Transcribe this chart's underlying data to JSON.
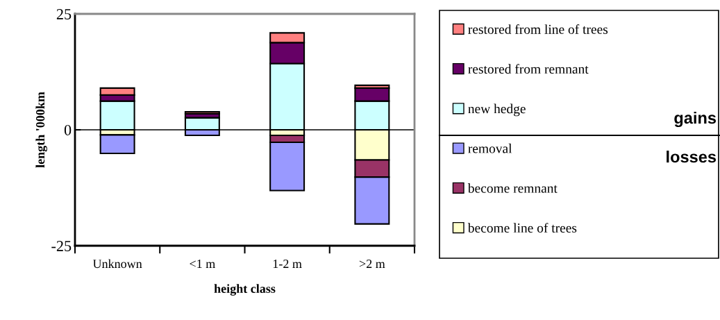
{
  "chart_data": {
    "type": "bar",
    "stacked": true,
    "xlabel": "height class",
    "ylabel": "length '000km",
    "categories": [
      "Unknown",
      "<1 m",
      "1-2 m",
      ">2 m"
    ],
    "series": [
      {
        "name": "new hedge",
        "color": "#ccffff",
        "values": [
          6.2,
          2.6,
          14.3,
          6.2
        ]
      },
      {
        "name": "restored from remnant",
        "color": "#660066",
        "values": [
          1.3,
          0.9,
          4.5,
          2.8
        ]
      },
      {
        "name": "restored from line of trees",
        "color": "#ff8080",
        "values": [
          1.5,
          0.4,
          2.1,
          0.6
        ]
      },
      {
        "name": "become line of trees",
        "color": "#ffffcc",
        "values": [
          -1.1,
          null,
          -1.2,
          -6.5
        ]
      },
      {
        "name": "become remnant",
        "color": "#993366",
        "values": [
          null,
          null,
          -1.5,
          -3.7
        ]
      },
      {
        "name": "removal",
        "color": "#9999ff",
        "values": [
          -4.0,
          -1.2,
          -10.4,
          -10.1
        ]
      }
    ],
    "ref_lines": [
      {
        "axis": "y",
        "value": 0,
        "color": "#000000"
      }
    ],
    "ylim": [
      -25,
      25
    ],
    "yticks": [
      -25,
      0,
      25
    ],
    "grid": false,
    "legend": "right",
    "annotations": [
      "gains",
      "losses"
    ]
  }
}
